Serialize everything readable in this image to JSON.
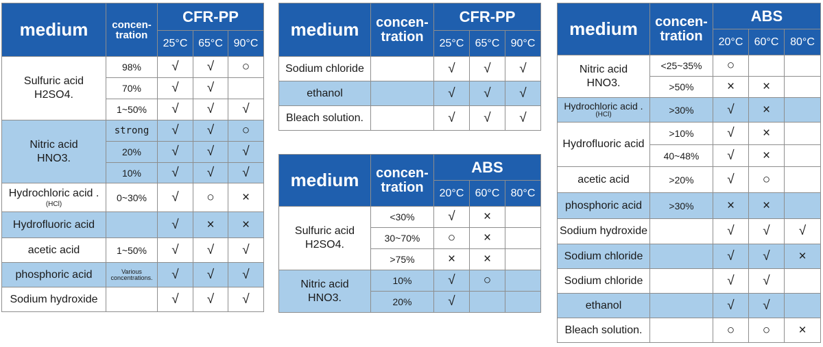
{
  "colors": {
    "header_bg": "#1f5fae",
    "header_text": "#ffffff",
    "band": "#a9cdea",
    "border": "#8d8d8d"
  },
  "icons": {
    "compatible": "checkmark-icon",
    "limited": "circle-icon",
    "not_compatible": "x-mark-icon"
  },
  "table1": {
    "medium_label": "medium",
    "conc_label": [
      "concen-",
      "tration"
    ],
    "resin": "CFR-PP",
    "temps": [
      "25°C",
      "65°C",
      "90°C"
    ],
    "rows": [
      {
        "name": "Sulfuric acid",
        "sub": "H2SO4.",
        "conc": "98%",
        "marks": [
          "√",
          "√",
          "○"
        ]
      },
      {
        "conc": "70%",
        "marks": [
          "√",
          "√",
          ""
        ]
      },
      {
        "conc": "1~50%",
        "marks": [
          "√",
          "√",
          "√"
        ]
      },
      {
        "name": "Nitric acid",
        "sub": "HNO3.",
        "conc": "strong",
        "marks": [
          "√",
          "√",
          "○"
        ]
      },
      {
        "conc": "20%",
        "marks": [
          "√",
          "√",
          "√"
        ]
      },
      {
        "conc": "10%",
        "marks": [
          "√",
          "√",
          "√"
        ]
      },
      {
        "name": "Hydrochloric acid .",
        "sub": "(HCl)",
        "conc": "0~30%",
        "marks": [
          "√",
          "○",
          "×"
        ]
      },
      {
        "name": "Hydrofluoric acid",
        "conc": "",
        "marks": [
          "√",
          "×",
          "×"
        ]
      },
      {
        "name": "acetic acid",
        "conc": "1~50%",
        "marks": [
          "√",
          "√",
          "√"
        ]
      },
      {
        "name": "phosphoric acid",
        "conc": "Various concentrations.",
        "marks": [
          "√",
          "√",
          "√"
        ]
      },
      {
        "name": "Sodium hydroxide",
        "conc": "",
        "marks": [
          "√",
          "√",
          "√"
        ]
      }
    ]
  },
  "table2": {
    "medium_label": "medium",
    "conc_label": [
      "concen-",
      "tration"
    ],
    "resin": "CFR-PP",
    "temps": [
      "25°C",
      "65°C",
      "90°C"
    ],
    "rows": [
      {
        "name": "Sodium chloride",
        "conc": "",
        "marks": [
          "√",
          "√",
          "√"
        ]
      },
      {
        "name": "ethanol",
        "conc": "",
        "marks": [
          "√",
          "√",
          "√"
        ]
      },
      {
        "name": "Bleach solution.",
        "conc": "",
        "marks": [
          "√",
          "√",
          "√"
        ]
      }
    ]
  },
  "table3": {
    "medium_label": "medium",
    "conc_label": [
      "concen-",
      "tration"
    ],
    "resin": "ABS",
    "temps": [
      "20°C",
      "60°C",
      "80°C"
    ],
    "rows": [
      {
        "name": "Sulfuric acid",
        "sub": "H2SO4.",
        "conc": "<30%",
        "marks": [
          "√",
          "×",
          ""
        ]
      },
      {
        "conc": "30~70%",
        "marks": [
          "○",
          "×",
          ""
        ]
      },
      {
        "conc": ">75%",
        "marks": [
          "×",
          "×",
          ""
        ]
      },
      {
        "name": "Nitric acid",
        "sub": "HNO3.",
        "conc": "10%",
        "marks": [
          "√",
          "○",
          ""
        ]
      },
      {
        "conc": "20%",
        "marks": [
          "√",
          "",
          ""
        ]
      }
    ]
  },
  "table4": {
    "medium_label": "medium",
    "conc_label": [
      "concen-",
      "tration"
    ],
    "resin": "ABS",
    "temps": [
      "20°C",
      "60°C",
      "80°C"
    ],
    "rows": [
      {
        "name": "Nitric acid",
        "sub": "HNO3.",
        "conc": "<25~35%",
        "marks": [
          "○",
          "",
          ""
        ]
      },
      {
        "conc": ">50%",
        "marks": [
          "×",
          "×",
          ""
        ]
      },
      {
        "name": "Hydrochloric acid .",
        "sub": "(HCl)",
        "conc": ">30%",
        "marks": [
          "√",
          "×",
          ""
        ]
      },
      {
        "name": "Hydrofluoric acid",
        "conc": ">10%",
        "marks": [
          "√",
          "×",
          ""
        ]
      },
      {
        "conc": "40~48%",
        "marks": [
          "√",
          "×",
          ""
        ]
      },
      {
        "name": "acetic acid",
        "conc": ">20%",
        "marks": [
          "√",
          "○",
          ""
        ]
      },
      {
        "name": "phosphoric acid",
        "conc": ">30%",
        "marks": [
          "×",
          "×",
          ""
        ]
      },
      {
        "name": "Sodium hydroxide",
        "conc": "",
        "marks": [
          "√",
          "√",
          "√"
        ]
      },
      {
        "name": "Sodium chloride",
        "conc": "",
        "marks": [
          "√",
          "√",
          "×"
        ]
      },
      {
        "name": "Sodium chloride",
        "conc": "",
        "marks": [
          "√",
          "√",
          ""
        ]
      },
      {
        "name": "ethanol",
        "conc": "",
        "marks": [
          "√",
          "√",
          ""
        ]
      },
      {
        "name": "Bleach solution.",
        "conc": "",
        "marks": [
          "○",
          "○",
          "×"
        ]
      }
    ]
  }
}
